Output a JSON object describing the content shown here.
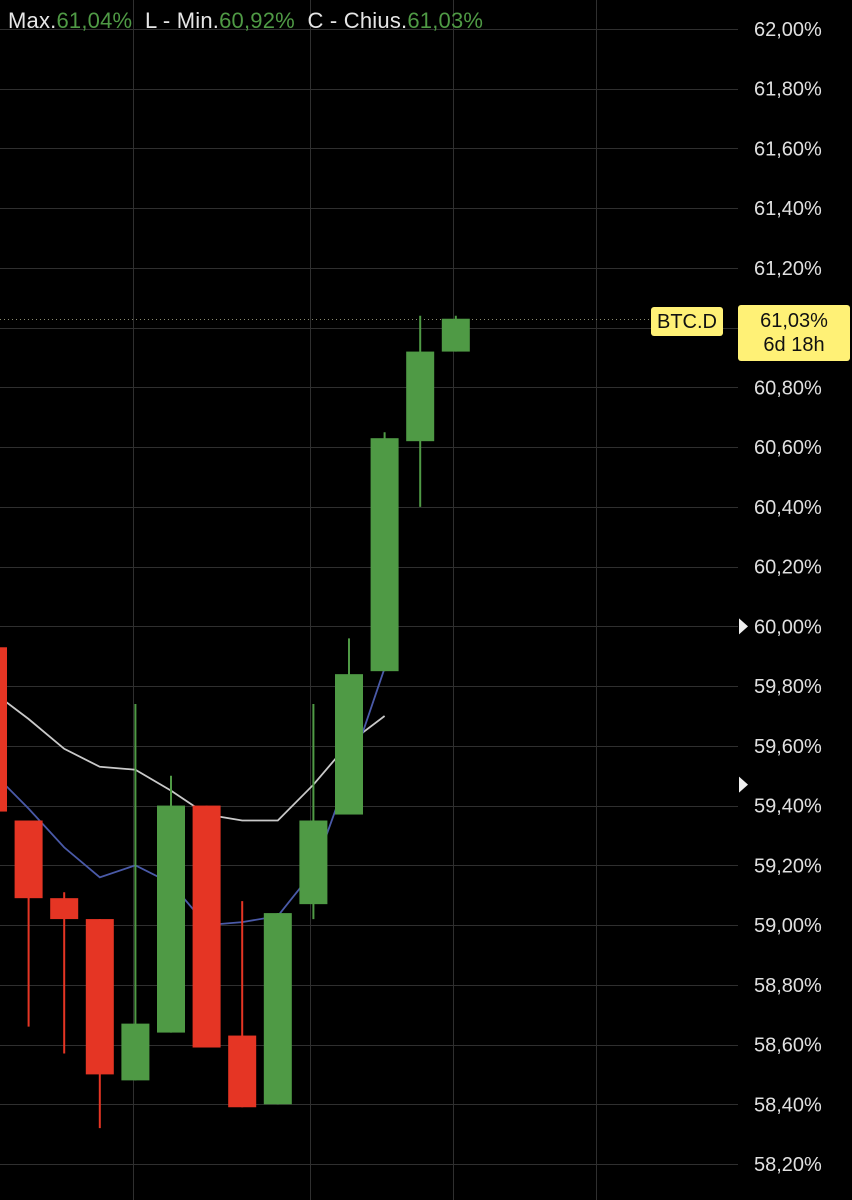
{
  "legend": {
    "high_label": "Max.",
    "high_value": "61,04%",
    "low_label": "L - Min.",
    "low_value": "60,92%",
    "close_label": "C - Chius.",
    "close_value": "61,03%"
  },
  "price_tag": {
    "symbol": "BTC.D",
    "price": "61,03%",
    "countdown": "6d 18h"
  },
  "colors": {
    "up": "#4f9a45",
    "down": "#e53524",
    "grid": "#2f2f2f",
    "ma_white": "#c9c9c9",
    "ma_blue": "#4a5aa8",
    "tag_bg": "#fff176"
  },
  "chart_data": {
    "type": "candlestick",
    "y_unit": "%",
    "ylim": [
      58.15,
      62.05
    ],
    "y_ticks": [
      62.0,
      61.8,
      61.6,
      61.4,
      61.2,
      60.8,
      60.6,
      60.4,
      60.2,
      60.0,
      59.8,
      59.6,
      59.4,
      59.2,
      59.0,
      58.8,
      58.6,
      58.4,
      58.2
    ],
    "y_tick_labels": [
      "62,00%",
      "61,80%",
      "61,60%",
      "61,40%",
      "61,20%",
      "60,80%",
      "60,60%",
      "60,40%",
      "60,20%",
      "60,00%",
      "59,80%",
      "59,60%",
      "59,40%",
      "59,20%",
      "59,00%",
      "58,80%",
      "58,60%",
      "58,40%",
      "58,20%"
    ],
    "y_tick_marker_values": [
      60.0,
      59.47
    ],
    "last_price": 61.03,
    "candles": [
      {
        "o": 59.93,
        "h": 59.93,
        "l": 59.38,
        "c": 59.38
      },
      {
        "o": 59.35,
        "h": 59.35,
        "l": 58.66,
        "c": 59.09
      },
      {
        "o": 59.09,
        "h": 59.11,
        "l": 58.57,
        "c": 59.02
      },
      {
        "o": 59.02,
        "h": 59.02,
        "l": 58.32,
        "c": 58.5
      },
      {
        "o": 58.48,
        "h": 59.74,
        "l": 58.48,
        "c": 58.67
      },
      {
        "o": 58.64,
        "h": 59.5,
        "l": 58.64,
        "c": 59.4
      },
      {
        "o": 59.4,
        "h": 59.4,
        "l": 58.59,
        "c": 58.59
      },
      {
        "o": 58.63,
        "h": 59.08,
        "l": 58.39,
        "c": 58.39
      },
      {
        "o": 58.4,
        "h": 59.04,
        "l": 58.4,
        "c": 59.04
      },
      {
        "o": 59.07,
        "h": 59.74,
        "l": 59.02,
        "c": 59.35
      },
      {
        "o": 59.37,
        "h": 59.96,
        "l": 59.37,
        "c": 59.84
      },
      {
        "o": 59.85,
        "h": 60.65,
        "l": 59.85,
        "c": 60.63
      },
      {
        "o": 60.62,
        "h": 61.04,
        "l": 60.4,
        "c": 60.92
      },
      {
        "o": 60.92,
        "h": 61.04,
        "l": 60.92,
        "c": 61.03
      }
    ],
    "ma_white": [
      59.78,
      59.69,
      59.59,
      59.53,
      59.52,
      59.45,
      59.37,
      59.35,
      59.35,
      59.47,
      59.61,
      59.7
    ],
    "ma_blue": [
      59.51,
      59.39,
      59.26,
      59.16,
      59.2,
      59.14,
      59.0,
      59.01,
      59.03,
      59.18,
      59.51,
      59.86
    ]
  }
}
